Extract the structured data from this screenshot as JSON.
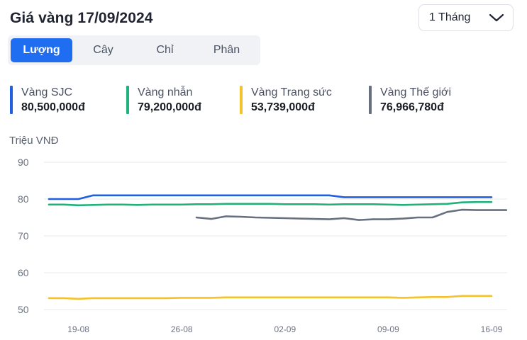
{
  "header": {
    "title": "Giá vàng 17/09/2024",
    "range_label": "1 Tháng"
  },
  "tabs": [
    {
      "label": "Lượng",
      "active": true
    },
    {
      "label": "Cây",
      "active": false
    },
    {
      "label": "Chỉ",
      "active": false
    },
    {
      "label": "Phân",
      "active": false
    }
  ],
  "legend": [
    {
      "name": "Vàng SJC",
      "value": "80,500,000đ",
      "color": "#1f5fe0"
    },
    {
      "name": "Vàng nhẫn",
      "value": "79,200,000đ",
      "color": "#1fb27a"
    },
    {
      "name": "Vàng Trang sức",
      "value": "53,739,000đ",
      "color": "#f5c22b"
    },
    {
      "name": "Vàng Thế giới",
      "value": "76,966,780đ",
      "color": "#667080"
    }
  ],
  "chart_data": {
    "type": "line",
    "ylabel": "Triệu VNĐ",
    "ylim": [
      50,
      90
    ],
    "yticks": [
      90,
      80,
      70,
      60,
      50
    ],
    "xtick_labels": [
      "19-08",
      "26-08",
      "02-09",
      "09-09",
      "16-09"
    ],
    "grid": true,
    "x": [
      "17-08",
      "18-08",
      "19-08",
      "20-08",
      "21-08",
      "22-08",
      "23-08",
      "24-08",
      "25-08",
      "26-08",
      "27-08",
      "28-08",
      "29-08",
      "30-08",
      "31-08",
      "01-09",
      "02-09",
      "03-09",
      "04-09",
      "05-09",
      "06-09",
      "07-09",
      "08-09",
      "09-09",
      "10-09",
      "11-09",
      "12-09",
      "13-09",
      "14-09",
      "15-09",
      "16-09",
      "17-09"
    ],
    "series": [
      {
        "name": "Vàng SJC",
        "color": "#1f5fe0",
        "values": [
          80.0,
          80.0,
          80.0,
          81.0,
          81.0,
          81.0,
          81.0,
          81.0,
          81.0,
          81.0,
          81.0,
          81.0,
          81.0,
          81.0,
          81.0,
          81.0,
          81.0,
          81.0,
          81.0,
          81.0,
          80.5,
          80.5,
          80.5,
          80.5,
          80.5,
          80.5,
          80.5,
          80.5,
          80.5,
          80.5,
          80.5,
          null
        ]
      },
      {
        "name": "Vàng nhẫn",
        "color": "#1fb27a",
        "values": [
          78.5,
          78.5,
          78.3,
          78.4,
          78.5,
          78.5,
          78.4,
          78.5,
          78.5,
          78.5,
          78.6,
          78.6,
          78.7,
          78.7,
          78.7,
          78.7,
          78.6,
          78.6,
          78.6,
          78.5,
          78.6,
          78.6,
          78.6,
          78.5,
          78.4,
          78.5,
          78.6,
          78.7,
          79.1,
          79.2,
          79.2,
          null
        ]
      },
      {
        "name": "Vàng Trang sức",
        "color": "#f5c22b",
        "values": [
          53.1,
          53.1,
          52.9,
          53.1,
          53.1,
          53.1,
          53.1,
          53.1,
          53.1,
          53.2,
          53.2,
          53.2,
          53.3,
          53.3,
          53.3,
          53.3,
          53.3,
          53.3,
          53.3,
          53.3,
          53.3,
          53.3,
          53.3,
          53.3,
          53.2,
          53.3,
          53.4,
          53.4,
          53.7,
          53.7,
          53.7,
          null
        ]
      },
      {
        "name": "Vàng Thế giới",
        "color": "#667080",
        "values": [
          null,
          null,
          null,
          null,
          null,
          null,
          null,
          null,
          null,
          null,
          75.0,
          74.6,
          75.3,
          75.2,
          75.0,
          74.9,
          74.8,
          74.7,
          74.6,
          74.5,
          74.8,
          74.3,
          74.5,
          74.5,
          74.7,
          75.0,
          75.0,
          76.5,
          77.1,
          77.0,
          77.0,
          77.0
        ]
      }
    ]
  }
}
